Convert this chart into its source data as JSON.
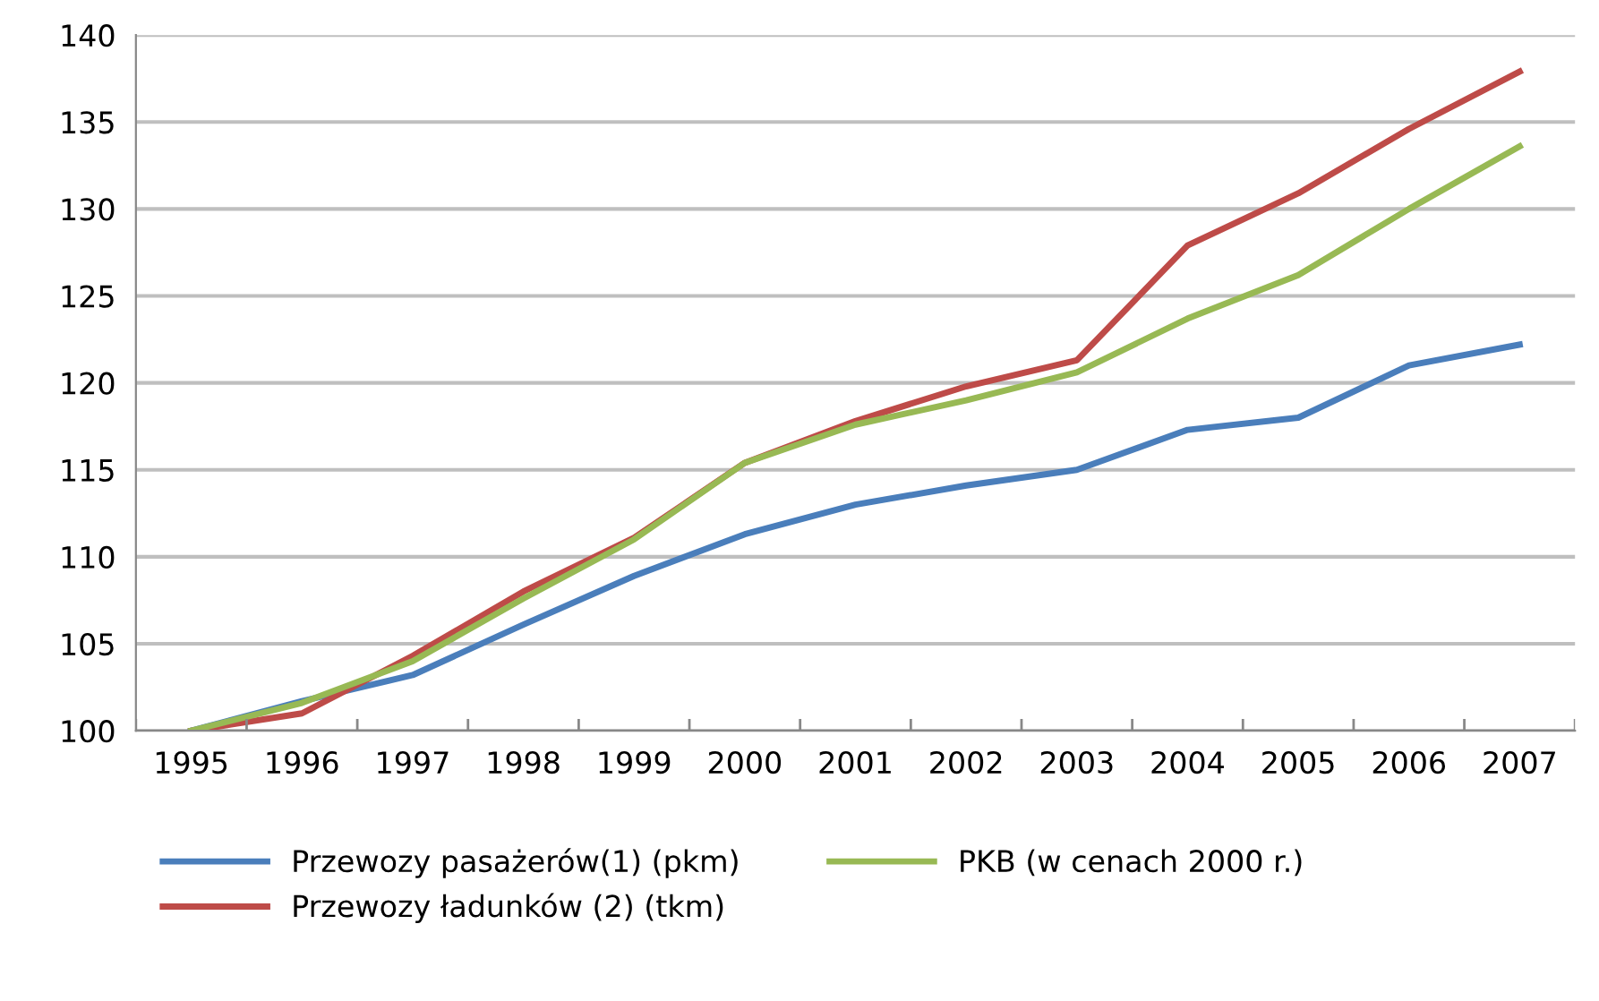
{
  "chart_data": {
    "type": "line",
    "categories": [
      "1995",
      "1996",
      "1997",
      "1998",
      "1999",
      "2000",
      "2001",
      "2002",
      "2003",
      "2004",
      "2005",
      "2006",
      "2007"
    ],
    "series": [
      {
        "name": "Przewozy pasażerów(1) (pkm)",
        "color": "#4a7ebb",
        "values": [
          100,
          101.7,
          103.2,
          106.1,
          108.9,
          111.3,
          113.0,
          114.1,
          115.0,
          117.3,
          118.0,
          121.0,
          122.2
        ]
      },
      {
        "name": "Przewozy ładunków (2) (tkm)",
        "color": "#be4b48",
        "values": [
          100,
          101.0,
          104.3,
          108.0,
          111.1,
          115.4,
          117.8,
          119.8,
          121.3,
          127.9,
          130.9,
          134.6,
          137.9
        ]
      },
      {
        "name": "PKB (w cenach 2000 r.)",
        "color": "#98b954",
        "values": [
          100,
          101.6,
          104.0,
          107.6,
          111.0,
          115.4,
          117.6,
          119.0,
          120.6,
          123.7,
          126.2,
          130.0,
          133.6
        ]
      }
    ],
    "ylim": [
      100,
      140
    ],
    "yticks": [
      100,
      105,
      110,
      115,
      120,
      125,
      130,
      135,
      140
    ],
    "grid": true,
    "legend": "bottom",
    "marker": "none",
    "line_style": "solid"
  }
}
